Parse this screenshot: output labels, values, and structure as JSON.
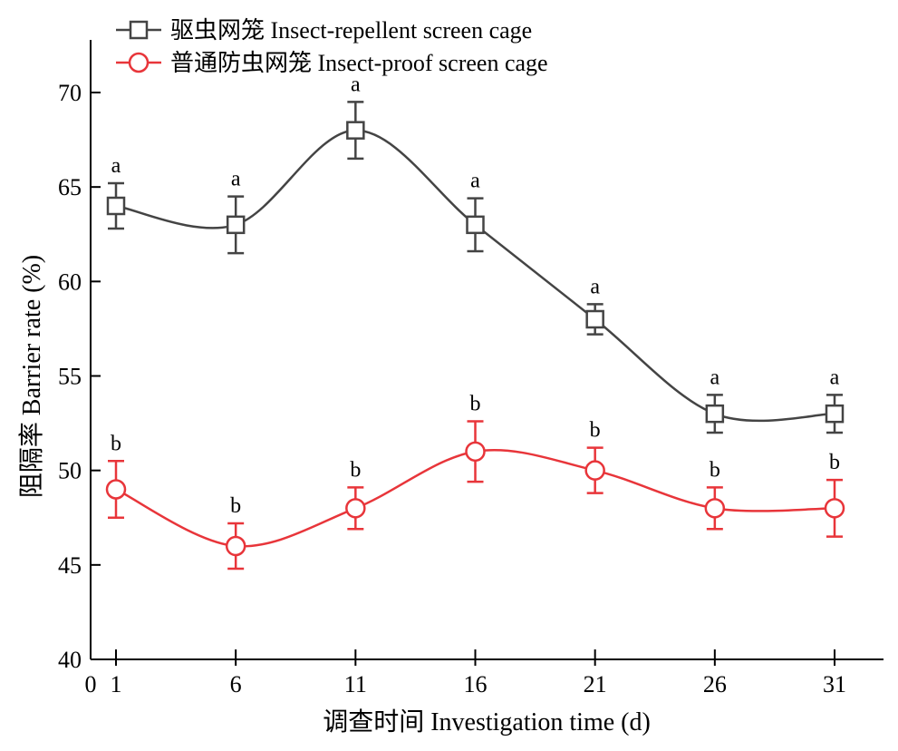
{
  "chart_data": {
    "type": "line",
    "xlabel": "调查时间 Investigation time (d)",
    "ylabel": "阻隔率 Barrier rate (%)",
    "xlim": [
      0,
      31
    ],
    "ylim": [
      40,
      72.5
    ],
    "x_ticks": [
      0,
      1,
      6,
      11,
      16,
      21,
      26,
      31
    ],
    "y_ticks": [
      40,
      45,
      50,
      55,
      60,
      65,
      70
    ],
    "x": [
      1,
      6,
      11,
      16,
      21,
      26,
      31
    ],
    "legend_position": "top-left",
    "grid": false,
    "series": [
      {
        "name": "驱虫网笼 Insect-repellent screen cage",
        "color": "#444444",
        "marker": "square",
        "values": [
          64,
          63,
          68,
          63,
          58,
          53,
          53
        ],
        "errors": [
          1.2,
          1.5,
          1.5,
          1.4,
          0.8,
          1.0,
          1.0
        ],
        "labels": [
          "a",
          "a",
          "a",
          "a",
          "a",
          "a",
          "a"
        ]
      },
      {
        "name": "普通防虫网笼 Insect-proof  screen cage",
        "color": "#e8353a",
        "marker": "circle",
        "values": [
          49,
          46,
          48,
          51,
          50,
          48,
          48
        ],
        "errors": [
          1.5,
          1.2,
          1.1,
          1.6,
          1.2,
          1.1,
          1.5
        ],
        "labels": [
          "b",
          "b",
          "b",
          "b",
          "b",
          "b",
          "b"
        ]
      }
    ]
  }
}
